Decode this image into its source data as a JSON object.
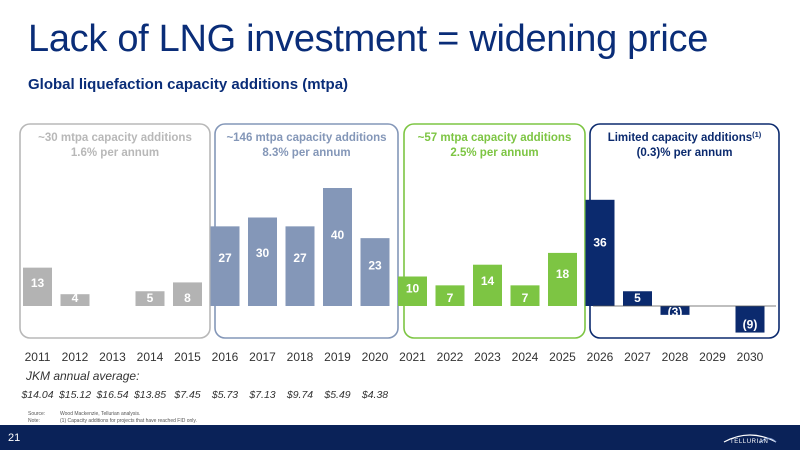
{
  "page": {
    "title": "Lack of LNG investment = widening price",
    "subtitle": "Global liquefaction capacity additions (mtpa)",
    "page_number": "21",
    "logo_text": "TELLURIAN",
    "source_label": "Source:",
    "source_text": "Wood Mackenzie, Tellurian analysis.",
    "note_label": "Note:",
    "note_text": "(1)  Capacity additions for projects that have reached FID only."
  },
  "colors": {
    "title": "#0a2d78",
    "gray": "#b3b3b3",
    "gray_box": "#b8b8b8",
    "slate": "#8497b8",
    "green": "#7dc543",
    "navy": "#0b2a6e",
    "footer": "#0a2258"
  },
  "periods": [
    {
      "line1": "~30 mtpa capacity additions",
      "line2": "1.6% per annum",
      "sup": "",
      "color": "gray"
    },
    {
      "line1": "~146 mtpa capacity additions",
      "line2": "8.3% per annum",
      "sup": "",
      "color": "slate"
    },
    {
      "line1": "~57 mtpa capacity additions",
      "line2": "2.5% per annum",
      "sup": "",
      "color": "green"
    },
    {
      "line1": "Limited capacity additions",
      "line2": "(0.3)% per annum",
      "sup": "(1)",
      "color": "navy"
    }
  ],
  "jkm": {
    "label": "JKM annual average:",
    "values": [
      "$14.04",
      "$15.12",
      "$16.54",
      "$13.85",
      "$7.45",
      "$5.73",
      "$7.13",
      "$9.74",
      "$5.49",
      "$4.38"
    ]
  },
  "chart_data": {
    "type": "bar",
    "categories": [
      "2011",
      "2012",
      "2013",
      "2014",
      "2015",
      "2016",
      "2017",
      "2018",
      "2019",
      "2020",
      "2021",
      "2022",
      "2023",
      "2024",
      "2025",
      "2026",
      "2027",
      "2028",
      "2029",
      "2030"
    ],
    "values": [
      13,
      4,
      0,
      5,
      8,
      27,
      30,
      27,
      40,
      23,
      10,
      7,
      14,
      7,
      18,
      36,
      5,
      -3,
      0,
      -9
    ],
    "labels": [
      "13",
      "4",
      "",
      "5",
      "8",
      "27",
      "30",
      "27",
      "40",
      "23",
      "10",
      "7",
      "14",
      "7",
      "18",
      "36",
      "5",
      "(3)",
      "",
      "(9)"
    ],
    "ylim": [
      -10,
      46
    ]
  }
}
